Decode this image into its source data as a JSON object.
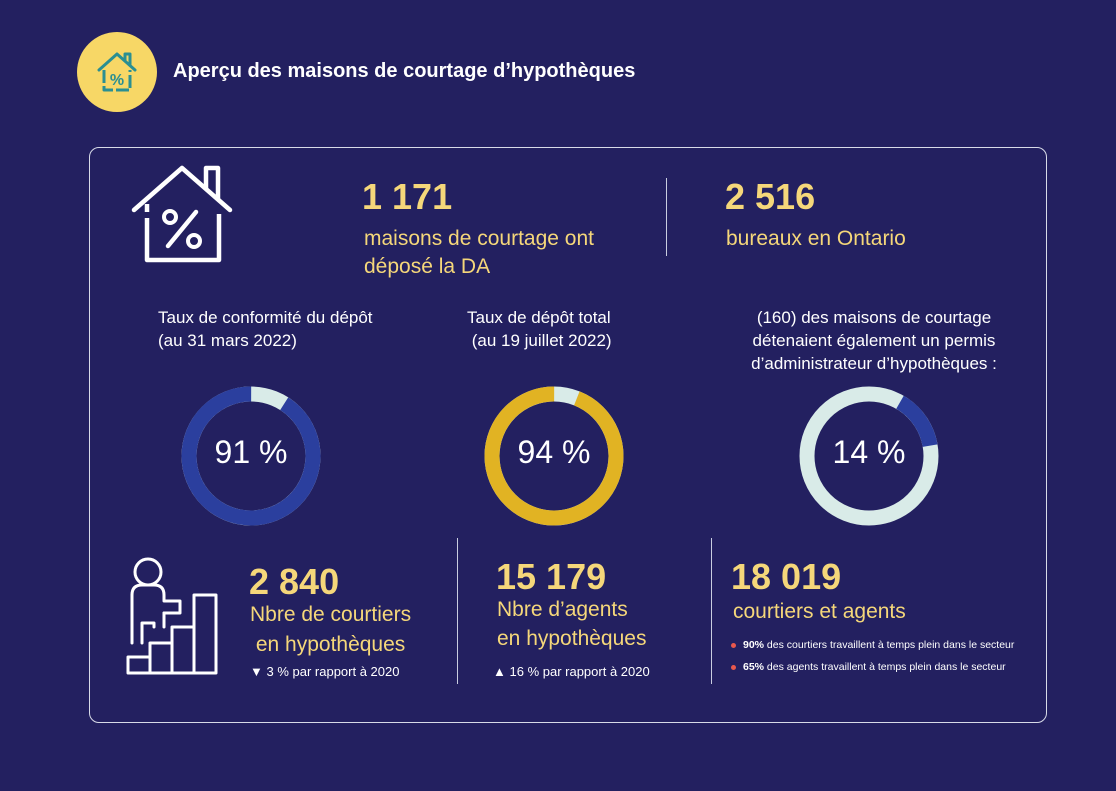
{
  "header": {
    "title": "Aperçu des maisons de courtage d’hypothèques",
    "icon": "house-percent-icon",
    "badge_color": "#f7d766"
  },
  "colors": {
    "background": "#232060",
    "accent_yellow": "#f5d77a",
    "donut_blue": "#2b3f9e",
    "donut_gold": "#e1b323",
    "donut_light": "#d9ebe8",
    "bullet_red": "#e8584d"
  },
  "top_stats": [
    {
      "value": "1 171",
      "label_line1": "maisons de courtage ont",
      "label_line2": "déposé la DA"
    },
    {
      "value": "2 516",
      "label_line1": "bureaux en Ontario"
    }
  ],
  "donuts": [
    {
      "caption_line1": "Taux de conformité du dépôt",
      "caption_line2": "(au 31 mars 2022)",
      "label": "91 %",
      "percent": 91
    },
    {
      "caption_line1": "Taux de dépôt total",
      "caption_line2": " (au 19 juillet 2022)",
      "label": "94 %",
      "percent": 94
    },
    {
      "caption_line1": "(160) des maisons de courtage",
      "caption_line2": "détenaient également un permis",
      "caption_line3": "d’administrateur d’hypothèques :",
      "label": "14 %",
      "percent": 14
    }
  ],
  "bottom_stats": [
    {
      "value": "2 840",
      "label_line1": "Nbre de courtiers",
      "label_line2": " en hypothèques",
      "change_arrow": "▼",
      "change_text": "3 % par rapport à 2020",
      "icon": "person-stairs-icon"
    },
    {
      "value": "15 179",
      "label_line1": "Nbre d’agents",
      "label_line2": "en hypothèques",
      "change_arrow": "▲",
      "change_text": "16 % par rapport à 2020"
    },
    {
      "value": "18 019",
      "label_line1": "courtiers et agents",
      "notes": [
        {
          "bold": "90%",
          "text": " des courtiers travaillent à temps plein dans le secteur"
        },
        {
          "bold": "65%",
          "text": " des agents travaillent à temps plein dans le secteur"
        }
      ]
    }
  ]
}
